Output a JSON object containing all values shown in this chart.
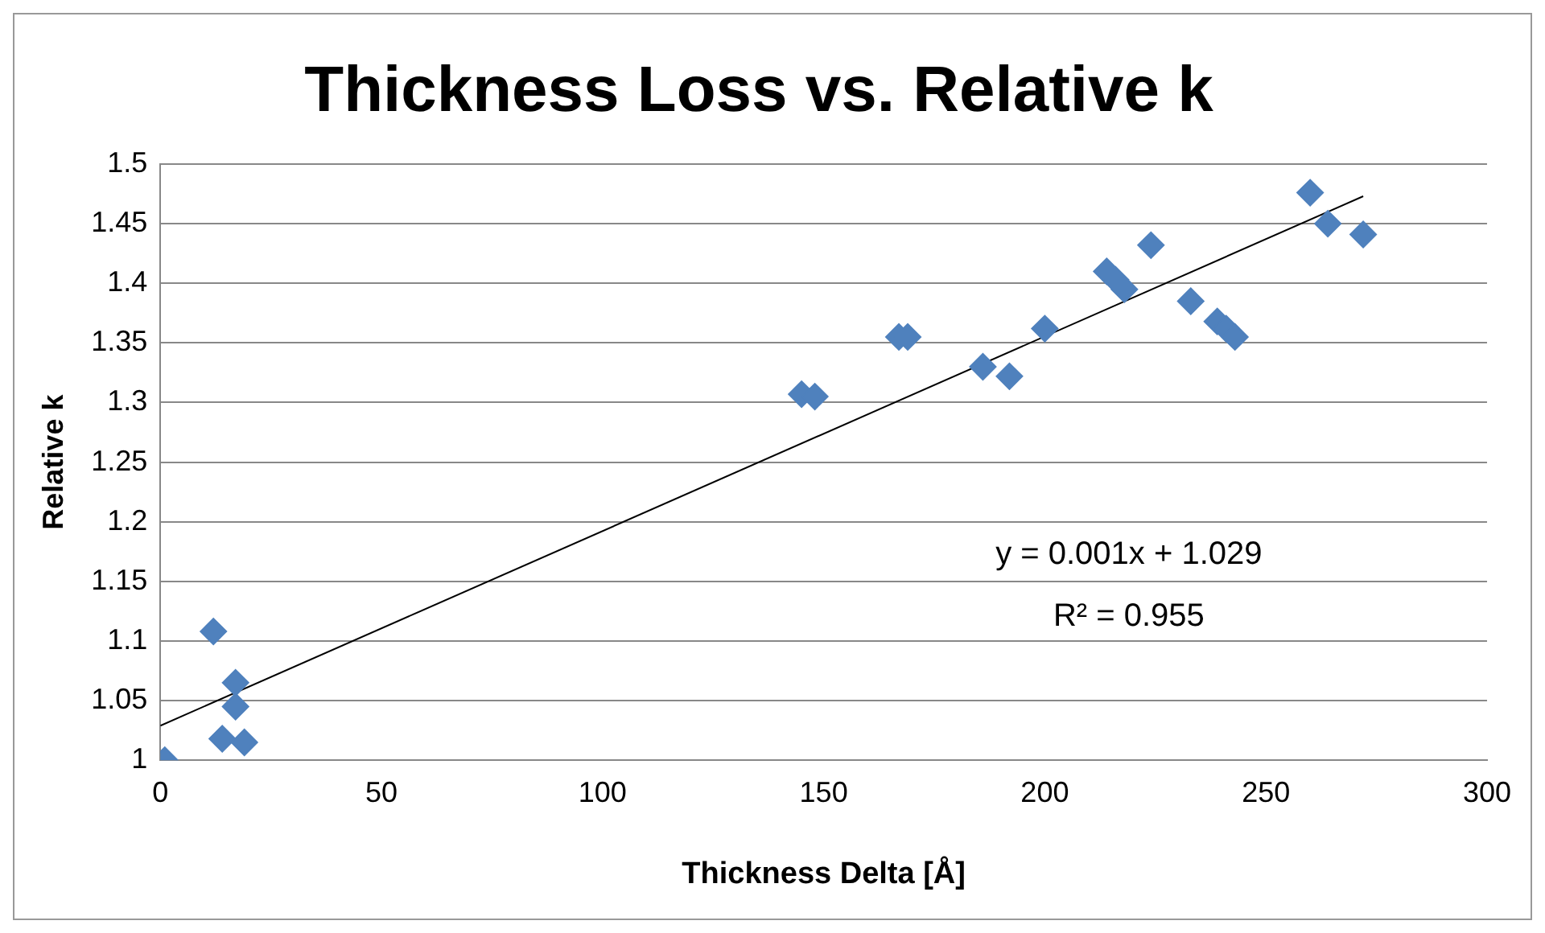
{
  "chart_data": {
    "type": "scatter",
    "title": "Thickness Loss vs. Relative k",
    "xlabel": "Thickness Delta [Å]",
    "ylabel": "Relative k",
    "xlim": [
      0,
      300
    ],
    "xticks": [
      0,
      50,
      100,
      150,
      200,
      250,
      300
    ],
    "ylim": [
      1,
      1.5
    ],
    "yticks": [
      1,
      1.05,
      1.1,
      1.15,
      1.2,
      1.25,
      1.3,
      1.35,
      1.4,
      1.45,
      1.5
    ],
    "grid": "y",
    "legend": false,
    "series": [
      {
        "marker": "diamond",
        "color": "#4f81bd",
        "x": [
          1,
          12,
          14,
          17,
          17,
          19,
          145,
          148,
          167,
          169,
          186,
          192,
          200,
          214,
          216,
          218,
          224,
          233,
          239,
          241,
          243,
          260,
          264,
          272
        ],
        "values": [
          1.0,
          1.108,
          1.018,
          1.065,
          1.045,
          1.015,
          1.307,
          1.305,
          1.355,
          1.355,
          1.33,
          1.322,
          1.362,
          1.41,
          1.403,
          1.395,
          1.432,
          1.385,
          1.368,
          1.362,
          1.355,
          1.476,
          1.45,
          1.441
        ]
      },
      {
        "type": "line",
        "marker": "none",
        "color": "#000000",
        "x": [
          0,
          272
        ],
        "values": [
          1.029,
          1.473
        ]
      }
    ],
    "annotations": [
      "y = 0.001x + 1.029",
      "R² = 0.955"
    ]
  }
}
